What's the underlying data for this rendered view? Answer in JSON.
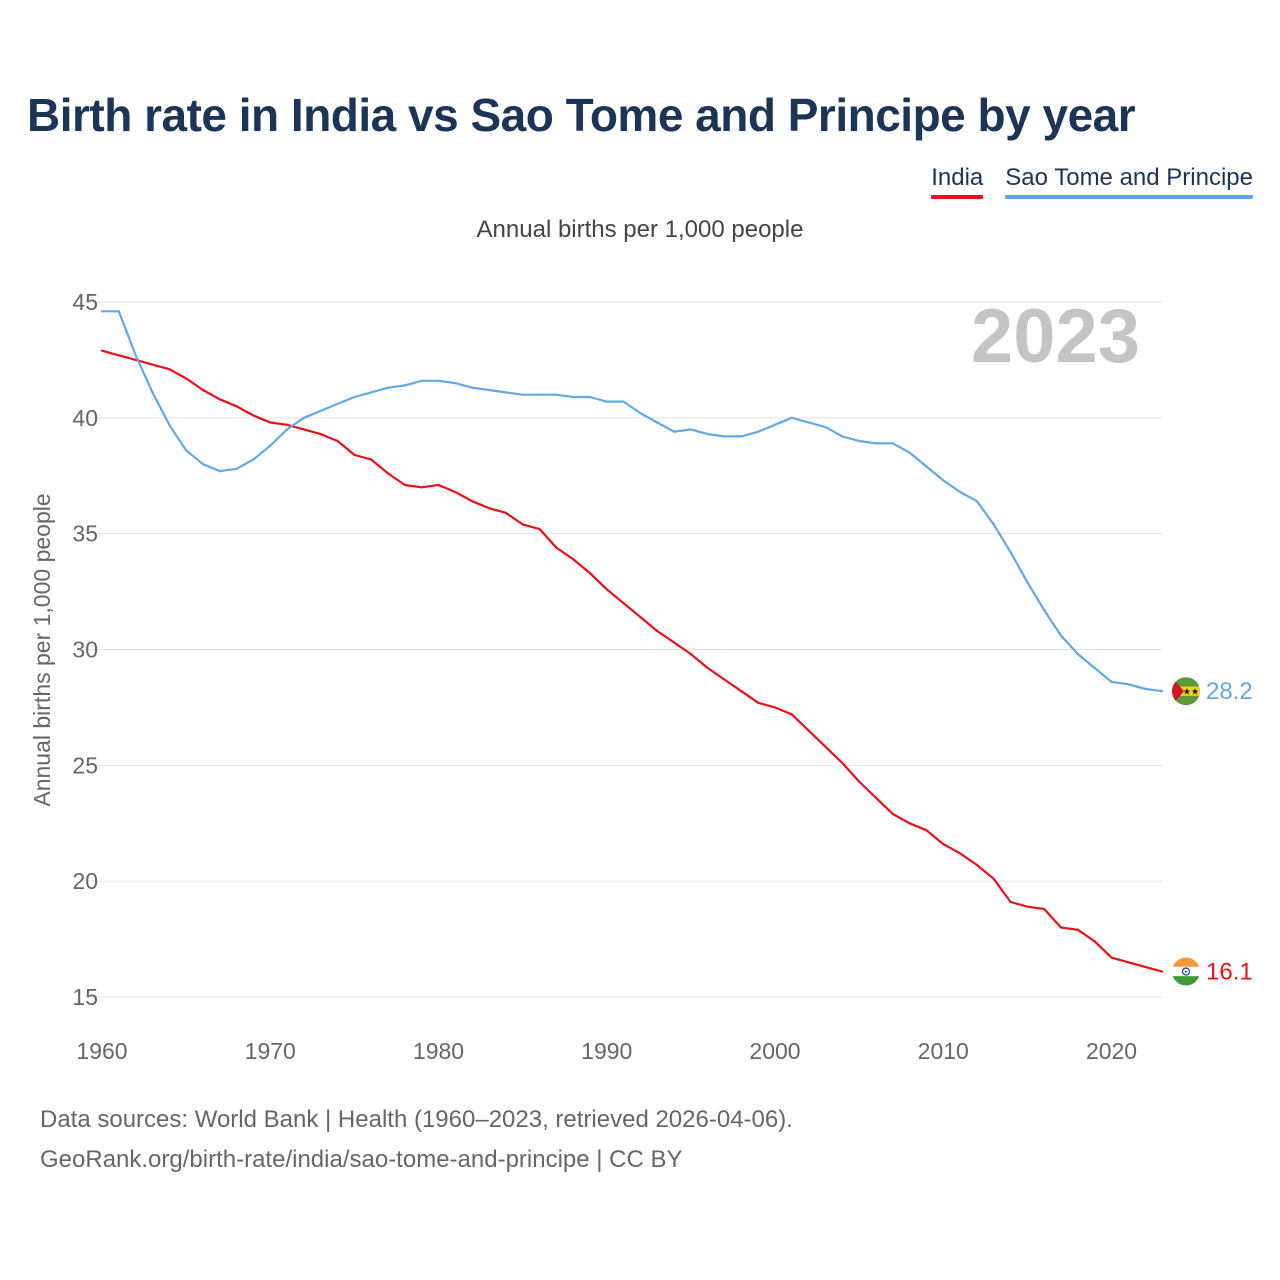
{
  "title": "Birth rate in India vs Sao Tome and Principe by year",
  "legend": [
    {
      "name": "India",
      "color": "#e8111a"
    },
    {
      "name": "Sao Tome and Principe",
      "color": "#63a8e6"
    }
  ],
  "subtitle": "Annual births per 1,000 people",
  "year_watermark": "2023",
  "footer": {
    "line1": "Data sources: World Bank | Health (1960–2023, retrieved 2026-04-06).",
    "line2": "GeoRank.org/birth-rate/india/sao-tome-and-principe | CC BY"
  },
  "chart_data": {
    "type": "line",
    "title": "Birth rate in India vs Sao Tome and Principe by year",
    "xlabel": "",
    "ylabel": "Annual births per 1,000 people",
    "xlim": [
      1960,
      2023
    ],
    "ylim": [
      15,
      45
    ],
    "x_ticks": [
      1960,
      1970,
      1980,
      1990,
      2000,
      2010,
      2020
    ],
    "y_ticks": [
      15,
      20,
      25,
      30,
      35,
      40,
      45
    ],
    "grid": true,
    "x": [
      1960,
      1961,
      1962,
      1963,
      1964,
      1965,
      1966,
      1967,
      1968,
      1969,
      1970,
      1971,
      1972,
      1973,
      1974,
      1975,
      1976,
      1977,
      1978,
      1979,
      1980,
      1981,
      1982,
      1983,
      1984,
      1985,
      1986,
      1987,
      1988,
      1989,
      1990,
      1991,
      1992,
      1993,
      1994,
      1995,
      1996,
      1997,
      1998,
      1999,
      2000,
      2001,
      2002,
      2003,
      2004,
      2005,
      2006,
      2007,
      2008,
      2009,
      2010,
      2011,
      2012,
      2013,
      2014,
      2015,
      2016,
      2017,
      2018,
      2019,
      2020,
      2021,
      2022,
      2023
    ],
    "series": [
      {
        "name": "India",
        "color": "#e8111a",
        "end_label": "16.1",
        "values": [
          42.9,
          42.7,
          42.5,
          42.3,
          42.1,
          41.7,
          41.2,
          40.8,
          40.5,
          40.1,
          39.8,
          39.7,
          39.5,
          39.3,
          39.0,
          38.4,
          38.2,
          37.6,
          37.1,
          37.0,
          37.1,
          36.8,
          36.4,
          36.1,
          35.9,
          35.4,
          35.2,
          34.4,
          33.9,
          33.3,
          32.6,
          32.0,
          31.4,
          30.8,
          30.3,
          29.8,
          29.2,
          28.7,
          28.2,
          27.7,
          27.5,
          27.2,
          26.5,
          25.8,
          25.1,
          24.3,
          23.6,
          22.9,
          22.5,
          22.2,
          21.6,
          21.2,
          20.7,
          20.1,
          19.1,
          18.9,
          18.8,
          18.0,
          17.9,
          17.4,
          16.7,
          16.5,
          16.3,
          16.1
        ]
      },
      {
        "name": "Sao Tome and Principe",
        "color": "#63a8e6",
        "end_label": "28.2",
        "values": [
          44.6,
          44.6,
          42.7,
          41.1,
          39.7,
          38.6,
          38.0,
          37.7,
          37.8,
          38.2,
          38.8,
          39.5,
          40.0,
          40.3,
          40.6,
          40.9,
          41.1,
          41.3,
          41.4,
          41.6,
          41.6,
          41.5,
          41.3,
          41.2,
          41.1,
          41.0,
          41.0,
          41.0,
          40.9,
          40.9,
          40.7,
          40.7,
          40.2,
          39.8,
          39.4,
          39.5,
          39.3,
          39.2,
          39.2,
          39.4,
          39.7,
          40.0,
          39.8,
          39.6,
          39.2,
          39.0,
          38.9,
          38.9,
          38.5,
          37.9,
          37.3,
          36.8,
          36.4,
          35.4,
          34.2,
          32.9,
          31.7,
          30.6,
          29.8,
          29.2,
          28.6,
          28.5,
          28.3,
          28.2
        ]
      }
    ]
  }
}
